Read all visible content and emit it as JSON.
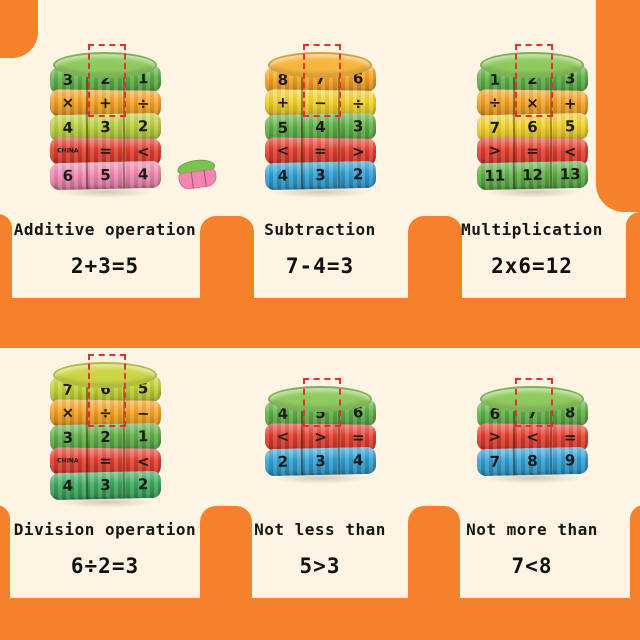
{
  "page": {
    "background_color": "#fdf4e3",
    "accent_color": "#f5812a"
  },
  "panels": [
    {
      "label": "Additive operation",
      "equation": "2+3=5",
      "lid_color": "#8fca5e",
      "rings": [
        {
          "color": "#5cb043",
          "cells": [
            "3",
            "2",
            "1"
          ]
        },
        {
          "color": "#f6a01e",
          "cells": [
            "×",
            "+",
            "÷"
          ]
        },
        {
          "color": "#b9d03a",
          "cells": [
            "4",
            "3",
            "2"
          ]
        },
        {
          "color": "#e33b2b",
          "cells": [
            "CHINA",
            "=",
            "<"
          ]
        },
        {
          "color": "#f286b0",
          "cells": [
            "6",
            "5",
            "4"
          ]
        }
      ],
      "dash": {
        "col": 1,
        "rows": 2
      },
      "side_piece": true
    },
    {
      "label": "Subtraction",
      "equation": "7-4=3",
      "lid_color": "#f7b63f",
      "rings": [
        {
          "color": "#f6a01e",
          "cells": [
            "8",
            "7",
            "6"
          ]
        },
        {
          "color": "#f2d024",
          "cells": [
            "+",
            "−",
            "÷"
          ]
        },
        {
          "color": "#5cb043",
          "cells": [
            "5",
            "4",
            "3"
          ]
        },
        {
          "color": "#e33b2b",
          "cells": [
            "<",
            "=",
            ">"
          ]
        },
        {
          "color": "#2e9fd4",
          "cells": [
            "4",
            "3",
            "2"
          ]
        }
      ],
      "dash": {
        "col": 1,
        "rows": 2
      }
    },
    {
      "label": "Multiplication",
      "equation": "2x6=12",
      "lid_color": "#8fca5e",
      "rings": [
        {
          "color": "#5cb043",
          "cells": [
            "1",
            "2",
            "3"
          ]
        },
        {
          "color": "#f6a01e",
          "cells": [
            "÷",
            "×",
            "+"
          ]
        },
        {
          "color": "#f2d024",
          "cells": [
            "7",
            "6",
            "5"
          ]
        },
        {
          "color": "#e33b2b",
          "cells": [
            ">",
            "=",
            "<"
          ]
        },
        {
          "color": "#5cb043",
          "cells": [
            "11",
            "12",
            "13"
          ]
        }
      ],
      "dash": {
        "col": 1,
        "rows": 2
      }
    },
    {
      "label": "Division operation",
      "equation": "6÷2=3",
      "lid_color": "#ccd645",
      "rings": [
        {
          "color": "#c3d22f",
          "cells": [
            "7",
            "6",
            "5"
          ]
        },
        {
          "color": "#f6a01e",
          "cells": [
            "×",
            "÷",
            "−"
          ]
        },
        {
          "color": "#5cb043",
          "cells": [
            "3",
            "2",
            "1"
          ]
        },
        {
          "color": "#e33b2b",
          "cells": [
            "CHINA",
            "=",
            "<"
          ]
        },
        {
          "color": "#3aa95c",
          "cells": [
            "4",
            "3",
            "2"
          ]
        }
      ],
      "dash": {
        "col": 1,
        "rows": 2
      }
    },
    {
      "label": "Not less than",
      "equation": "5>3",
      "lid_color": "#8fca5e",
      "rings": [
        {
          "color": "#5cb043",
          "cells": [
            "4",
            "5",
            "6"
          ]
        },
        {
          "color": "#e33b2b",
          "cells": [
            "<",
            ">",
            "="
          ]
        },
        {
          "color": "#2e9fd4",
          "cells": [
            "2",
            "3",
            "4"
          ]
        }
      ],
      "dash": {
        "col": 1,
        "rows": 1
      }
    },
    {
      "label": "Not more than",
      "equation": "7<8",
      "lid_color": "#8fca5e",
      "rings": [
        {
          "color": "#5cb043",
          "cells": [
            "6",
            "7",
            "8"
          ]
        },
        {
          "color": "#e33b2b",
          "cells": [
            ">",
            "<",
            "="
          ]
        },
        {
          "color": "#2e9fd4",
          "cells": [
            "7",
            "8",
            "9"
          ]
        }
      ],
      "dash": {
        "col": 1,
        "rows": 1
      }
    }
  ]
}
